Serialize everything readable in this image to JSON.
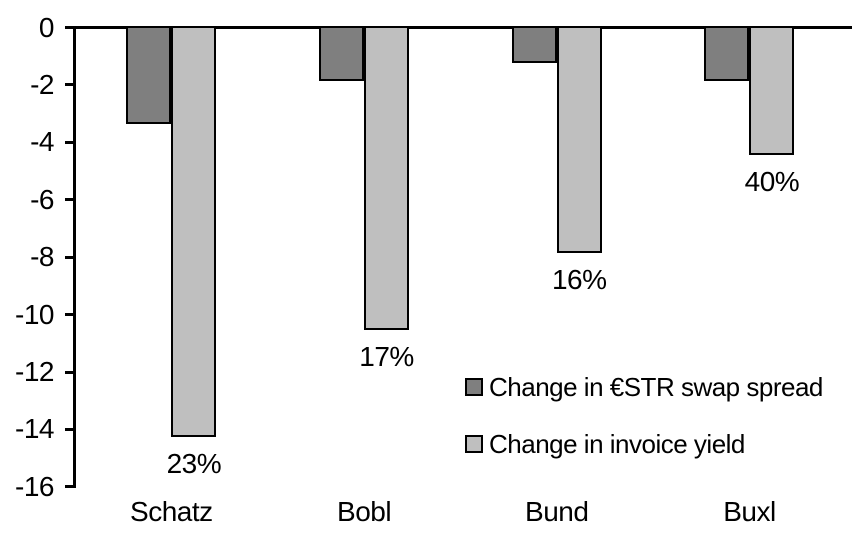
{
  "chart_data": {
    "type": "bar",
    "title": "",
    "xlabel": "",
    "ylabel": "",
    "categories": [
      "Schatz",
      "Bobl",
      "Bund",
      "Buxl"
    ],
    "series": [
      {
        "name": "Change in €STR swap spread",
        "color": "#7F7F7F",
        "values": [
          -3.3,
          -1.8,
          -1.2,
          -1.8
        ]
      },
      {
        "name": "Change in invoice yield",
        "color": "#BFBFBF",
        "values": [
          -14.2,
          -10.5,
          -7.8,
          -4.4
        ],
        "point_labels": [
          "23%",
          "17%",
          "16%",
          "40%"
        ]
      }
    ],
    "ylim": [
      -16,
      0
    ],
    "yticks": [
      0,
      -2,
      -4,
      -6,
      -8,
      -10,
      -12,
      -14,
      -16
    ],
    "ytick_labels": [
      "0",
      "-2",
      "-4",
      "-6",
      "-8",
      "-10",
      "-12",
      "-14",
      "-16"
    ],
    "grid": false,
    "bar_border_color": "#000000",
    "axis_color": "#000000",
    "legend_position": "inside-right-middle"
  }
}
